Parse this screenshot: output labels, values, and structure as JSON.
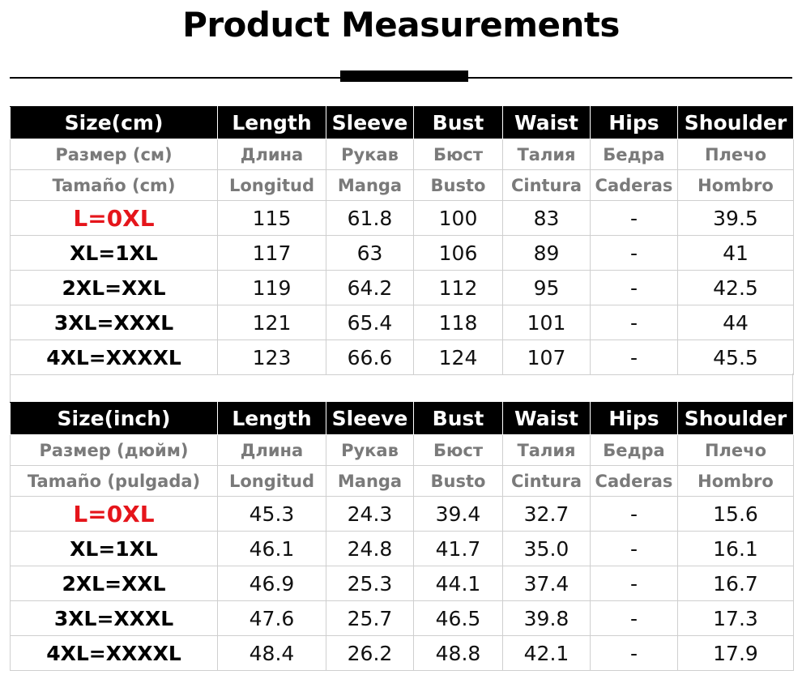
{
  "title": "Product Measurements",
  "tables": [
    {
      "header": [
        "Size(cm)",
        "Length",
        "Sleeve",
        "Bust",
        "Waist",
        "Hips",
        "Shoulder"
      ],
      "russian": [
        "Размер (см)",
        "Длина",
        "Рукав",
        "Бюст",
        "Талия",
        "Бедра",
        "Плечо"
      ],
      "spanish": [
        "Tamaño (cm)",
        "Longitud",
        "Manga",
        "Busto",
        "Cintura",
        "Caderas",
        "Hombro"
      ],
      "rows": [
        {
          "size": "L=0XL",
          "color": "#e5151b",
          "values": [
            "115",
            "61.8",
            "100",
            "83",
            "-",
            "39.5"
          ]
        },
        {
          "size": "XL=1XL",
          "values": [
            "117",
            "63",
            "106",
            "89",
            "-",
            "41"
          ]
        },
        {
          "size": "2XL=XXL",
          "values": [
            "119",
            "64.2",
            "112",
            "95",
            "-",
            "42.5"
          ]
        },
        {
          "size": "3XL=XXXL",
          "values": [
            "121",
            "65.4",
            "118",
            "101",
            "-",
            "44"
          ]
        },
        {
          "size": "4XL=XXXXL",
          "values": [
            "123",
            "66.6",
            "124",
            "107",
            "-",
            "45.5"
          ]
        }
      ]
    },
    {
      "header": [
        "Size(inch)",
        "Length",
        "Sleeve",
        "Bust",
        "Waist",
        "Hips",
        "Shoulder"
      ],
      "russian": [
        "Размер (дюйм)",
        "Длина",
        "Рукав",
        "Бюст",
        "Талия",
        "Бедра",
        "Плечо"
      ],
      "spanish": [
        "Tamaño (pulgada)",
        "Longitud",
        "Manga",
        "Busto",
        "Cintura",
        "Caderas",
        "Hombro"
      ],
      "rows": [
        {
          "size": "L=0XL",
          "color": "#e5151b",
          "values": [
            "45.3",
            "24.3",
            "39.4",
            "32.7",
            "-",
            "15.6"
          ]
        },
        {
          "size": "XL=1XL",
          "values": [
            "46.1",
            "24.8",
            "41.7",
            "35.0",
            "-",
            "16.1"
          ]
        },
        {
          "size": "2XL=XXL",
          "values": [
            "46.9",
            "25.3",
            "44.1",
            "37.4",
            "-",
            "16.7"
          ]
        },
        {
          "size": "3XL=XXXL",
          "values": [
            "47.6",
            "25.7",
            "46.5",
            "39.8",
            "-",
            "17.3"
          ]
        },
        {
          "size": "4XL=XXXXL",
          "values": [
            "48.4",
            "26.2",
            "48.8",
            "42.1",
            "-",
            "17.9"
          ]
        }
      ]
    }
  ]
}
